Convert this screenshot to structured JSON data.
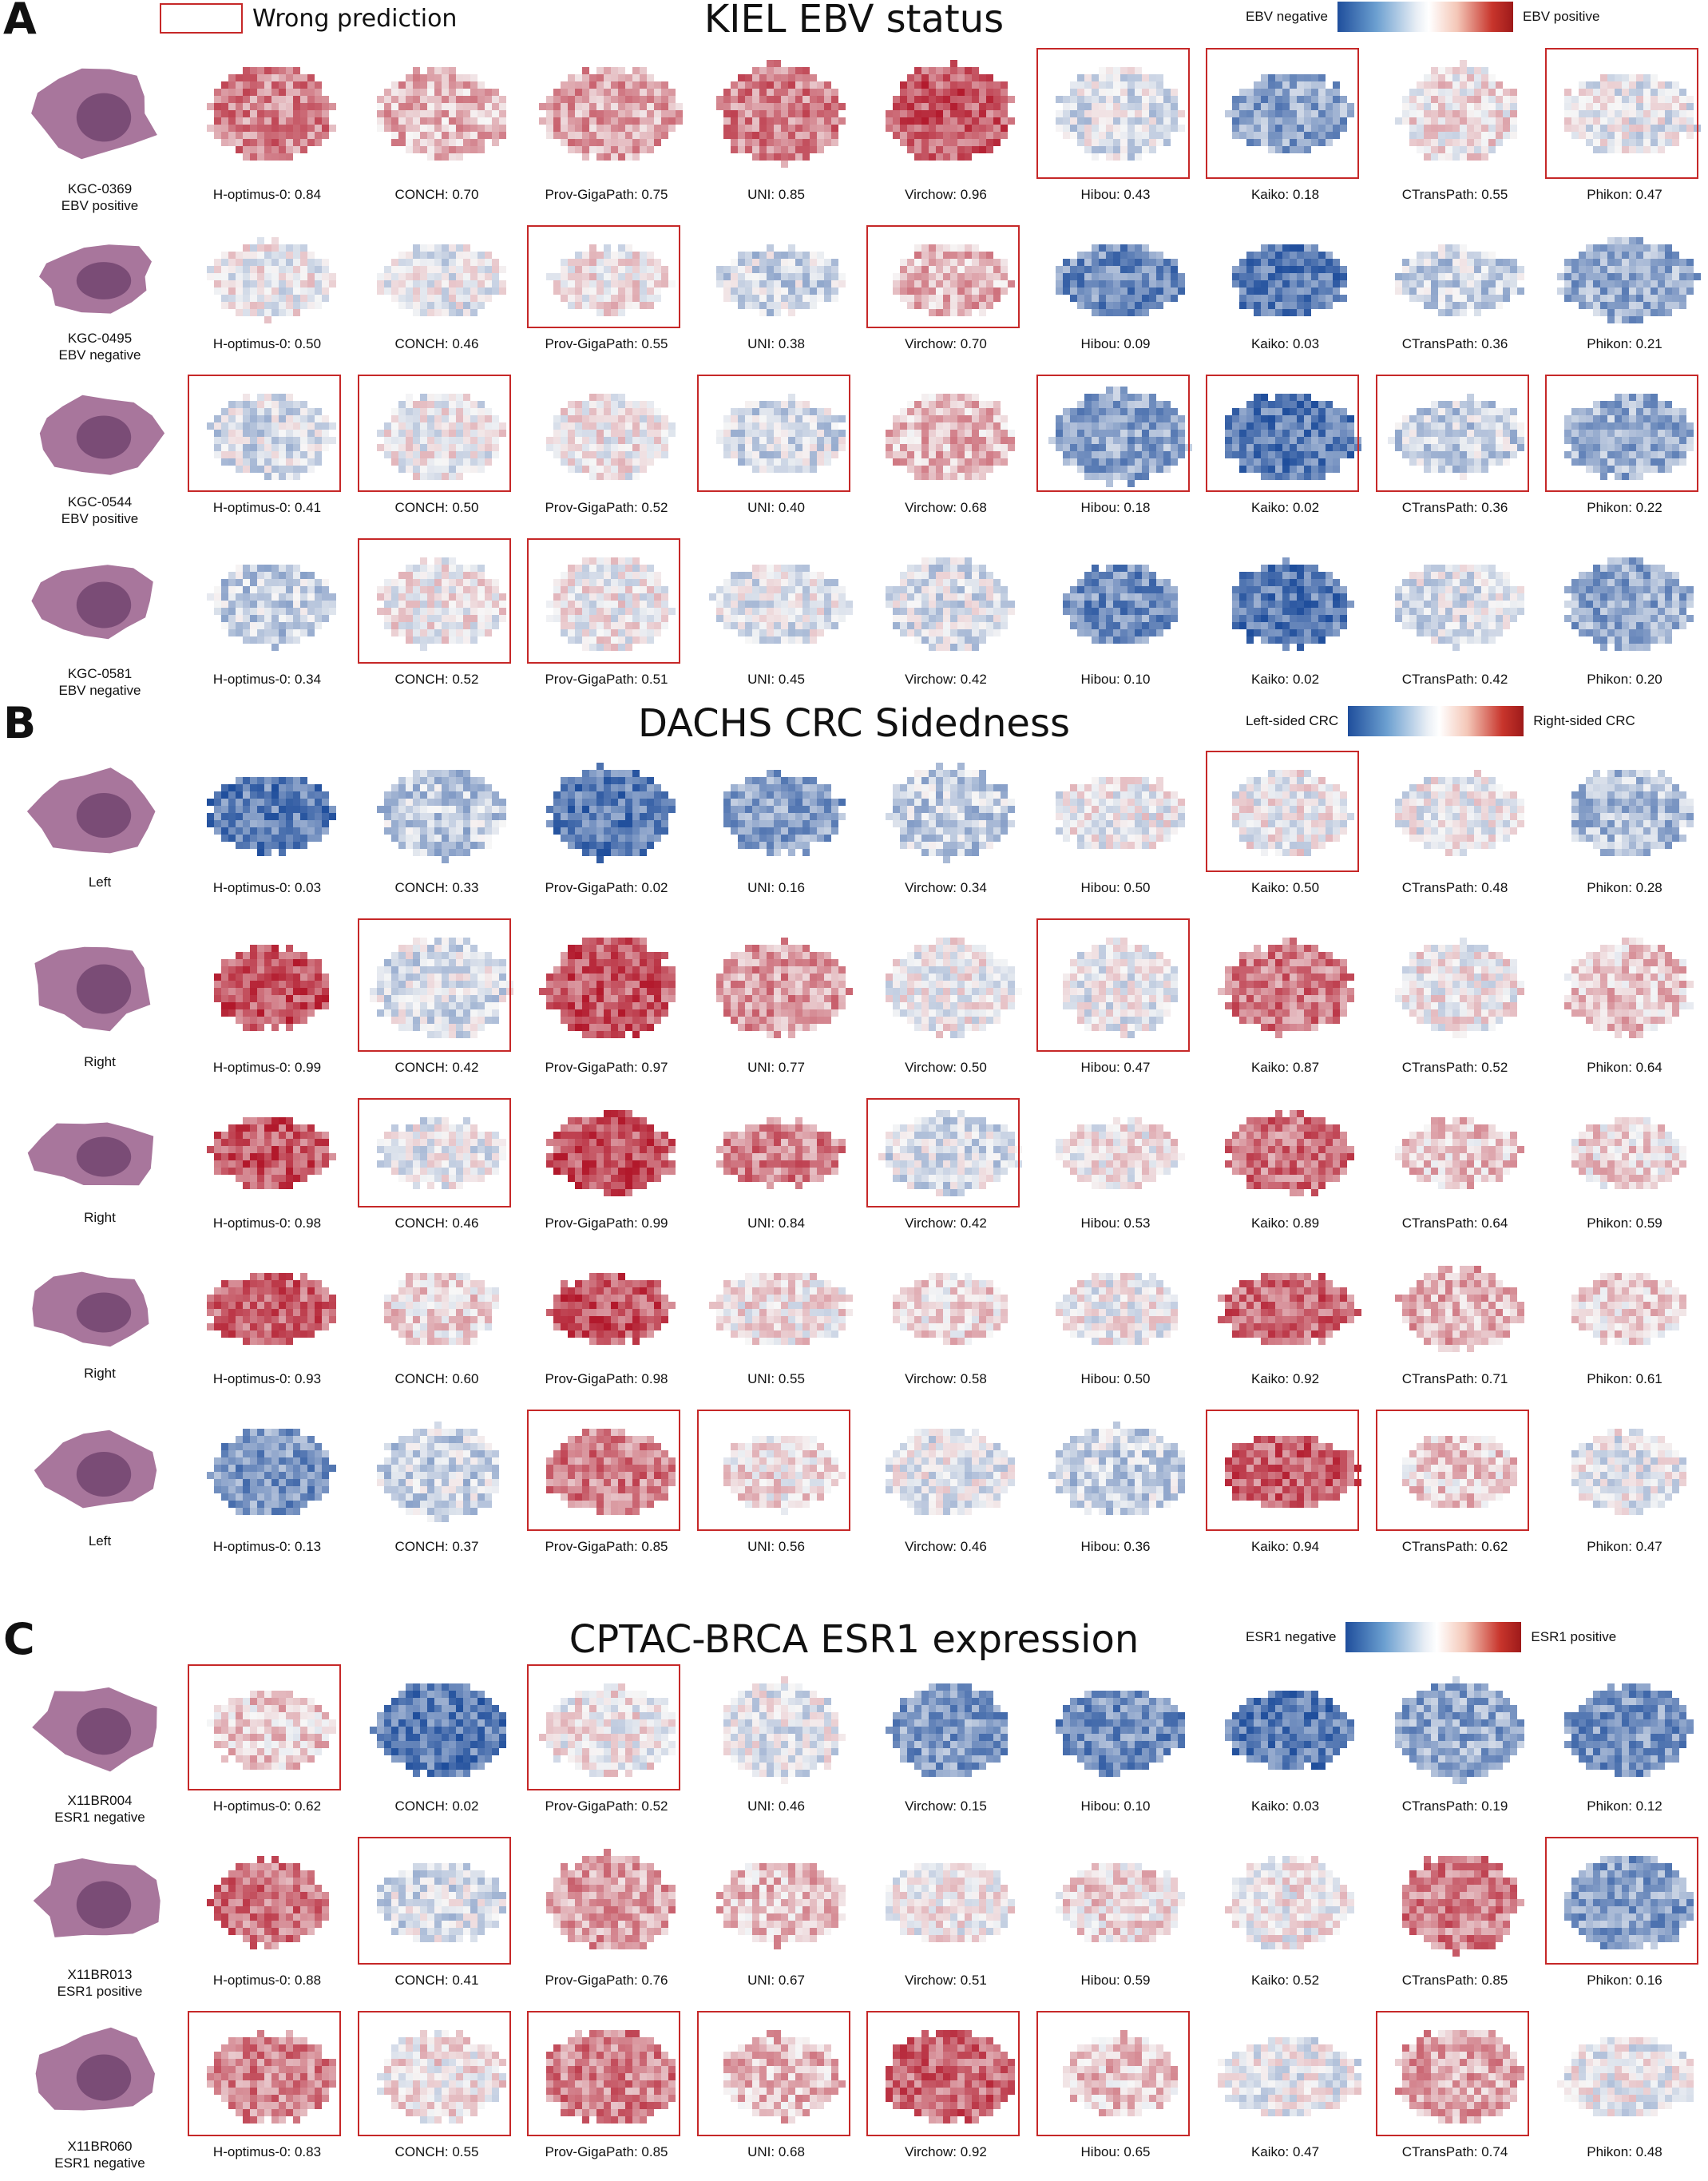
{
  "legend": {
    "label": "Wrong prediction",
    "frame_color": "#c62828"
  },
  "colormap": {
    "negative_color": "#1f4e9c",
    "neutral_color": "#ffffff",
    "positive_color": "#9e1a1a"
  },
  "panels": [
    {
      "letter": "A",
      "title": "KIEL EBV status",
      "colorbar": {
        "left": "EBV negative",
        "right": "EBV positive"
      },
      "rows": [
        {
          "case_id": "KGC-0369",
          "case_label": "EBV positive",
          "models": [
            {
              "name": "H-optimus-0",
              "score": "0.84",
              "wrong": false
            },
            {
              "name": "CONCH",
              "score": "0.70",
              "wrong": false
            },
            {
              "name": "Prov-GigaPath",
              "score": "0.75",
              "wrong": false
            },
            {
              "name": "UNI",
              "score": "0.85",
              "wrong": false
            },
            {
              "name": "Virchow",
              "score": "0.96",
              "wrong": false
            },
            {
              "name": "Hibou",
              "score": "0.43",
              "wrong": true
            },
            {
              "name": "Kaiko",
              "score": "0.18",
              "wrong": true
            },
            {
              "name": "CTransPath",
              "score": "0.55",
              "wrong": false
            },
            {
              "name": "Phikon",
              "score": "0.47",
              "wrong": true
            }
          ]
        },
        {
          "case_id": "KGC-0495",
          "case_label": "EBV negative",
          "models": [
            {
              "name": "H-optimus-0",
              "score": "0.50",
              "wrong": false
            },
            {
              "name": "CONCH",
              "score": "0.46",
              "wrong": false
            },
            {
              "name": "Prov-GigaPath",
              "score": "0.55",
              "wrong": true
            },
            {
              "name": "UNI",
              "score": "0.38",
              "wrong": false
            },
            {
              "name": "Virchow",
              "score": "0.70",
              "wrong": true
            },
            {
              "name": "Hibou",
              "score": "0.09",
              "wrong": false
            },
            {
              "name": "Kaiko",
              "score": "0.03",
              "wrong": false
            },
            {
              "name": "CTransPath",
              "score": "0.36",
              "wrong": false
            },
            {
              "name": "Phikon",
              "score": "0.21",
              "wrong": false
            }
          ]
        },
        {
          "case_id": "KGC-0544",
          "case_label": "EBV positive",
          "models": [
            {
              "name": "H-optimus-0",
              "score": "0.41",
              "wrong": true
            },
            {
              "name": "CONCH",
              "score": "0.50",
              "wrong": true
            },
            {
              "name": "Prov-GigaPath",
              "score": "0.52",
              "wrong": false
            },
            {
              "name": "UNI",
              "score": "0.40",
              "wrong": true
            },
            {
              "name": "Virchow",
              "score": "0.68",
              "wrong": false
            },
            {
              "name": "Hibou",
              "score": "0.18",
              "wrong": true
            },
            {
              "name": "Kaiko",
              "score": "0.02",
              "wrong": true
            },
            {
              "name": "CTransPath",
              "score": "0.36",
              "wrong": true
            },
            {
              "name": "Phikon",
              "score": "0.22",
              "wrong": true
            }
          ]
        },
        {
          "case_id": "KGC-0581",
          "case_label": "EBV negative",
          "models": [
            {
              "name": "H-optimus-0",
              "score": "0.34",
              "wrong": false
            },
            {
              "name": "CONCH",
              "score": "0.52",
              "wrong": true
            },
            {
              "name": "Prov-GigaPath",
              "score": "0.51",
              "wrong": true
            },
            {
              "name": "UNI",
              "score": "0.45",
              "wrong": false
            },
            {
              "name": "Virchow",
              "score": "0.42",
              "wrong": false
            },
            {
              "name": "Hibou",
              "score": "0.10",
              "wrong": false
            },
            {
              "name": "Kaiko",
              "score": "0.02",
              "wrong": false
            },
            {
              "name": "CTransPath",
              "score": "0.42",
              "wrong": false
            },
            {
              "name": "Phikon",
              "score": "0.20",
              "wrong": false
            }
          ]
        }
      ]
    },
    {
      "letter": "B",
      "title": "DACHS CRC Sidedness",
      "colorbar": {
        "left": "Left-sided CRC",
        "right": "Right-sided CRC"
      },
      "rows": [
        {
          "case_id": "",
          "case_label": "Left",
          "models": [
            {
              "name": "H-optimus-0",
              "score": "0.03",
              "wrong": false
            },
            {
              "name": "CONCH",
              "score": "0.33",
              "wrong": false
            },
            {
              "name": "Prov-GigaPath",
              "score": "0.02",
              "wrong": false
            },
            {
              "name": "UNI",
              "score": "0.16",
              "wrong": false
            },
            {
              "name": "Virchow",
              "score": "0.34",
              "wrong": false
            },
            {
              "name": "Hibou",
              "score": "0.50",
              "wrong": false
            },
            {
              "name": "Kaiko",
              "score": "0.50",
              "wrong": true
            },
            {
              "name": "CTransPath",
              "score": "0.48",
              "wrong": false
            },
            {
              "name": "Phikon",
              "score": "0.28",
              "wrong": false
            }
          ]
        },
        {
          "case_id": "",
          "case_label": "Right",
          "models": [
            {
              "name": "H-optimus-0",
              "score": "0.99",
              "wrong": false
            },
            {
              "name": "CONCH",
              "score": "0.42",
              "wrong": true
            },
            {
              "name": "Prov-GigaPath",
              "score": "0.97",
              "wrong": false
            },
            {
              "name": "UNI",
              "score": "0.77",
              "wrong": false
            },
            {
              "name": "Virchow",
              "score": "0.50",
              "wrong": false
            },
            {
              "name": "Hibou",
              "score": "0.47",
              "wrong": true
            },
            {
              "name": "Kaiko",
              "score": "0.87",
              "wrong": false
            },
            {
              "name": "CTransPath",
              "score": "0.52",
              "wrong": false
            },
            {
              "name": "Phikon",
              "score": "0.64",
              "wrong": false
            }
          ]
        },
        {
          "case_id": "",
          "case_label": "Right",
          "models": [
            {
              "name": "H-optimus-0",
              "score": "0.98",
              "wrong": false
            },
            {
              "name": "CONCH",
              "score": "0.46",
              "wrong": true
            },
            {
              "name": "Prov-GigaPath",
              "score": "0.99",
              "wrong": false
            },
            {
              "name": "UNI",
              "score": "0.84",
              "wrong": false
            },
            {
              "name": "Virchow",
              "score": "0.42",
              "wrong": true
            },
            {
              "name": "Hibou",
              "score": "0.53",
              "wrong": false
            },
            {
              "name": "Kaiko",
              "score": "0.89",
              "wrong": false
            },
            {
              "name": "CTransPath",
              "score": "0.64",
              "wrong": false
            },
            {
              "name": "Phikon",
              "score": "0.59",
              "wrong": false
            }
          ]
        },
        {
          "case_id": "",
          "case_label": "Right",
          "models": [
            {
              "name": "H-optimus-0",
              "score": "0.93",
              "wrong": false
            },
            {
              "name": "CONCH",
              "score": "0.60",
              "wrong": false
            },
            {
              "name": "Prov-GigaPath",
              "score": "0.98",
              "wrong": false
            },
            {
              "name": "UNI",
              "score": "0.55",
              "wrong": false
            },
            {
              "name": "Virchow",
              "score": "0.58",
              "wrong": false
            },
            {
              "name": "Hibou",
              "score": "0.50",
              "wrong": false
            },
            {
              "name": "Kaiko",
              "score": "0.92",
              "wrong": false
            },
            {
              "name": "CTransPath",
              "score": "0.71",
              "wrong": false
            },
            {
              "name": "Phikon",
              "score": "0.61",
              "wrong": false
            }
          ]
        },
        {
          "case_id": "",
          "case_label": "Left",
          "models": [
            {
              "name": "H-optimus-0",
              "score": "0.13",
              "wrong": false
            },
            {
              "name": "CONCH",
              "score": "0.37",
              "wrong": false
            },
            {
              "name": "Prov-GigaPath",
              "score": "0.85",
              "wrong": true
            },
            {
              "name": "UNI",
              "score": "0.56",
              "wrong": true
            },
            {
              "name": "Virchow",
              "score": "0.46",
              "wrong": false
            },
            {
              "name": "Hibou",
              "score": "0.36",
              "wrong": false
            },
            {
              "name": "Kaiko",
              "score": "0.94",
              "wrong": true
            },
            {
              "name": "CTransPath",
              "score": "0.62",
              "wrong": true
            },
            {
              "name": "Phikon",
              "score": "0.47",
              "wrong": false
            }
          ]
        }
      ]
    },
    {
      "letter": "C",
      "title": "CPTAC-BRCA ESR1 expression",
      "colorbar": {
        "left": "ESR1 negative",
        "right": "ESR1 positive"
      },
      "rows": [
        {
          "case_id": "X11BR004",
          "case_label": "ESR1 negative",
          "models": [
            {
              "name": "H-optimus-0",
              "score": "0.62",
              "wrong": true
            },
            {
              "name": "CONCH",
              "score": "0.02",
              "wrong": false
            },
            {
              "name": "Prov-GigaPath",
              "score": "0.52",
              "wrong": true
            },
            {
              "name": "UNI",
              "score": "0.46",
              "wrong": false
            },
            {
              "name": "Virchow",
              "score": "0.15",
              "wrong": false
            },
            {
              "name": "Hibou",
              "score": "0.10",
              "wrong": false
            },
            {
              "name": "Kaiko",
              "score": "0.03",
              "wrong": false
            },
            {
              "name": "CTransPath",
              "score": "0.19",
              "wrong": false
            },
            {
              "name": "Phikon",
              "score": "0.12",
              "wrong": false
            }
          ]
        },
        {
          "case_id": "X11BR013",
          "case_label": "ESR1 positive",
          "models": [
            {
              "name": "H-optimus-0",
              "score": "0.88",
              "wrong": false
            },
            {
              "name": "CONCH",
              "score": "0.41",
              "wrong": true
            },
            {
              "name": "Prov-GigaPath",
              "score": "0.76",
              "wrong": false
            },
            {
              "name": "UNI",
              "score": "0.67",
              "wrong": false
            },
            {
              "name": "Virchow",
              "score": "0.51",
              "wrong": false
            },
            {
              "name": "Hibou",
              "score": "0.59",
              "wrong": false
            },
            {
              "name": "Kaiko",
              "score": "0.52",
              "wrong": false
            },
            {
              "name": "CTransPath",
              "score": "0.85",
              "wrong": false
            },
            {
              "name": "Phikon",
              "score": "0.16",
              "wrong": true
            }
          ]
        },
        {
          "case_id": "X11BR060",
          "case_label": "ESR1 negative",
          "models": [
            {
              "name": "H-optimus-0",
              "score": "0.83",
              "wrong": true
            },
            {
              "name": "CONCH",
              "score": "0.55",
              "wrong": true
            },
            {
              "name": "Prov-GigaPath",
              "score": "0.85",
              "wrong": true
            },
            {
              "name": "UNI",
              "score": "0.68",
              "wrong": true
            },
            {
              "name": "Virchow",
              "score": "0.92",
              "wrong": true
            },
            {
              "name": "Hibou",
              "score": "0.65",
              "wrong": true
            },
            {
              "name": "Kaiko",
              "score": "0.47",
              "wrong": false
            },
            {
              "name": "CTransPath",
              "score": "0.74",
              "wrong": true
            },
            {
              "name": "Phikon",
              "score": "0.48",
              "wrong": false
            }
          ]
        }
      ]
    }
  ]
}
